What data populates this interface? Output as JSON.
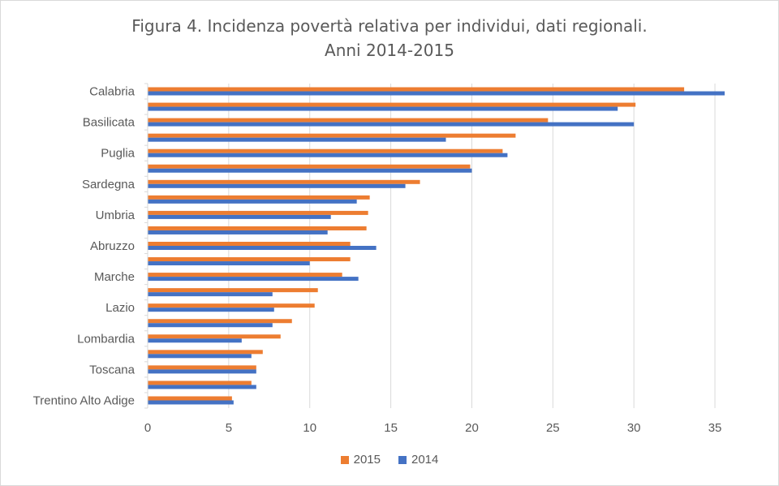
{
  "chart_data": {
    "type": "bar",
    "orientation": "horizontal",
    "title_line1": "Figura 4. Incidenza povertà relativa per individui, dati regionali.",
    "title_line2": "Anni 2014-2015",
    "xlim": [
      0,
      37
    ],
    "xticks": [
      0,
      5,
      10,
      15,
      20,
      25,
      30,
      35
    ],
    "grid": "vertical",
    "legend_position": "bottom",
    "categories": [
      "Calabria",
      "",
      "Basilicata",
      "",
      "Puglia",
      "",
      "Sardegna",
      "",
      "Umbria",
      "",
      "Abruzzo",
      "",
      "Marche",
      "",
      "Lazio",
      "",
      "Lombardia",
      "",
      "Toscana",
      "",
      "Trentino Alto Adige"
    ],
    "series": [
      {
        "name": "2015",
        "color": "#ED7D31",
        "values": [
          33.1,
          30.1,
          24.7,
          22.7,
          21.9,
          19.9,
          16.8,
          13.7,
          13.6,
          13.5,
          12.5,
          12.5,
          12.0,
          10.5,
          10.3,
          8.9,
          8.2,
          7.1,
          6.7,
          6.4,
          5.2
        ]
      },
      {
        "name": "2014",
        "color": "#4472C4",
        "values": [
          35.6,
          29.0,
          30.0,
          18.4,
          22.2,
          20.0,
          15.9,
          12.9,
          11.3,
          11.1,
          14.1,
          10.0,
          13.0,
          7.7,
          7.8,
          7.7,
          5.8,
          6.4,
          6.7,
          6.7,
          5.3
        ]
      }
    ]
  },
  "legend": {
    "label_2015": "2015",
    "label_2014": "2014"
  }
}
